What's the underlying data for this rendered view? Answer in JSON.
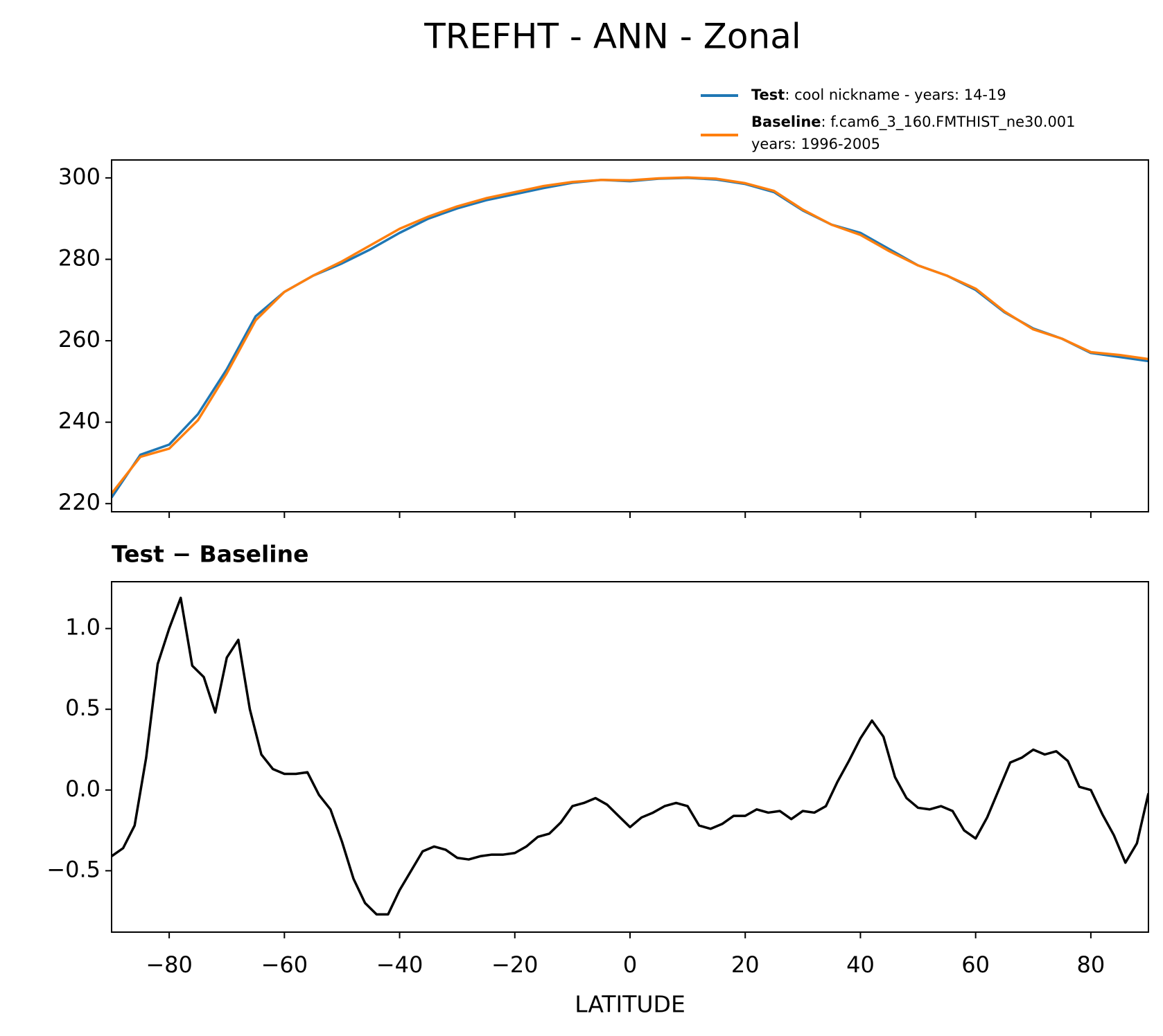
{
  "title": "TREFHT - ANN - Zonal",
  "chart_data": [
    {
      "type": "line",
      "x": [
        -90,
        -85,
        -80,
        -75,
        -70,
        -65,
        -60,
        -55,
        -50,
        -45,
        -40,
        -35,
        -30,
        -25,
        -20,
        -15,
        -10,
        -5,
        0,
        5,
        10,
        15,
        20,
        25,
        30,
        35,
        40,
        45,
        50,
        55,
        60,
        65,
        70,
        75,
        80,
        85,
        90
      ],
      "series": [
        {
          "name": "Test",
          "legend_label": [
            ": cool nickname - years: 14-19"
          ],
          "color": "#1f77b4",
          "values": [
            221.5,
            232,
            234.5,
            242,
            253,
            266,
            272,
            276,
            279,
            282.5,
            286.5,
            290,
            292.5,
            294.5,
            296,
            297.5,
            298.8,
            299.5,
            299.2,
            299.8,
            300,
            299.6,
            298.5,
            296.5,
            292,
            288.5,
            286.5,
            282.5,
            278.5,
            276,
            272.5,
            267,
            263,
            260.5,
            257,
            256,
            255
          ]
        },
        {
          "name": "Baseline",
          "legend_label": [
            ": f.cam6_3_160.FMTHIST_ne30.001",
            "years: 1996-2005"
          ],
          "color": "#ff7f0e",
          "values": [
            222.5,
            231.5,
            233.5,
            240.5,
            252,
            265,
            272,
            276,
            279.5,
            283.5,
            287.5,
            290.5,
            293,
            295,
            296.5,
            298,
            299,
            299.5,
            299.4,
            299.9,
            300.1,
            299.8,
            298.7,
            296.8,
            292.2,
            288.5,
            286,
            282,
            278.5,
            276,
            272.8,
            267.2,
            262.8,
            260.5,
            257.2,
            256.5,
            255.5
          ]
        }
      ],
      "xlim": [
        -90,
        90
      ],
      "xticks": [
        -80,
        -60,
        -40,
        -20,
        0,
        20,
        40,
        60,
        80
      ],
      "xtick_labels": false,
      "ylim": [
        218,
        304.4
      ],
      "yticks": [
        220,
        240,
        260,
        280,
        300
      ]
    },
    {
      "type": "line",
      "title": "Test − Baseline",
      "xlabel": "LATITUDE",
      "x": [
        -90,
        -88,
        -86,
        -84,
        -82,
        -80,
        -78,
        -76,
        -74,
        -72,
        -70,
        -68,
        -66,
        -64,
        -62,
        -60,
        -58,
        -56,
        -54,
        -52,
        -50,
        -48,
        -46,
        -44,
        -42,
        -40,
        -38,
        -36,
        -34,
        -32,
        -30,
        -28,
        -26,
        -24,
        -22,
        -20,
        -18,
        -16,
        -14,
        -12,
        -10,
        -8,
        -6,
        -4,
        -2,
        0,
        2,
        4,
        6,
        8,
        10,
        12,
        14,
        16,
        18,
        20,
        22,
        24,
        26,
        28,
        30,
        32,
        34,
        36,
        38,
        40,
        42,
        44,
        46,
        48,
        50,
        52,
        54,
        56,
        58,
        60,
        62,
        64,
        66,
        68,
        70,
        72,
        74,
        76,
        78,
        80,
        82,
        84,
        86,
        88,
        90
      ],
      "series": [
        {
          "color": "#000000",
          "values": [
            -0.41,
            -0.36,
            -0.22,
            0.2,
            0.78,
            1.0,
            1.19,
            0.77,
            0.7,
            0.48,
            0.82,
            0.93,
            0.5,
            0.22,
            0.13,
            0.1,
            0.1,
            0.11,
            -0.03,
            -0.12,
            -0.32,
            -0.55,
            -0.7,
            -0.77,
            -0.77,
            -0.62,
            -0.5,
            -0.38,
            -0.35,
            -0.37,
            -0.42,
            -0.43,
            -0.41,
            -0.4,
            -0.4,
            -0.39,
            -0.35,
            -0.29,
            -0.27,
            -0.2,
            -0.1,
            -0.08,
            -0.05,
            -0.09,
            -0.16,
            -0.23,
            -0.17,
            -0.14,
            -0.1,
            -0.08,
            -0.1,
            -0.22,
            -0.24,
            -0.21,
            -0.16,
            -0.16,
            -0.12,
            -0.14,
            -0.13,
            -0.18,
            -0.13,
            -0.14,
            -0.1,
            0.05,
            0.18,
            0.32,
            0.43,
            0.33,
            0.08,
            -0.05,
            -0.11,
            -0.12,
            -0.1,
            -0.13,
            -0.25,
            -0.3,
            -0.17,
            0,
            0.17,
            0.2,
            0.25,
            0.22,
            0.24,
            0.18,
            0.02,
            0,
            -0.15,
            -0.28,
            -0.45,
            -0.33,
            -0.02
          ]
        }
      ],
      "xlim": [
        -90,
        90
      ],
      "xticks": [
        {
          "value": -80,
          "label": "−80"
        },
        {
          "value": -60,
          "label": "−60"
        },
        {
          "value": -40,
          "label": "−40"
        },
        {
          "value": -20,
          "label": "−20"
        },
        0,
        20,
        40,
        60,
        80
      ],
      "ylim": [
        -0.88,
        1.29
      ],
      "yticks": [
        {
          "value": -0.5,
          "label": "−0.5"
        },
        {
          "value": 0,
          "label": "0.0"
        },
        {
          "value": 0.5,
          "label": "0.5"
        },
        {
          "value": 1,
          "label": "1.0"
        }
      ]
    }
  ]
}
